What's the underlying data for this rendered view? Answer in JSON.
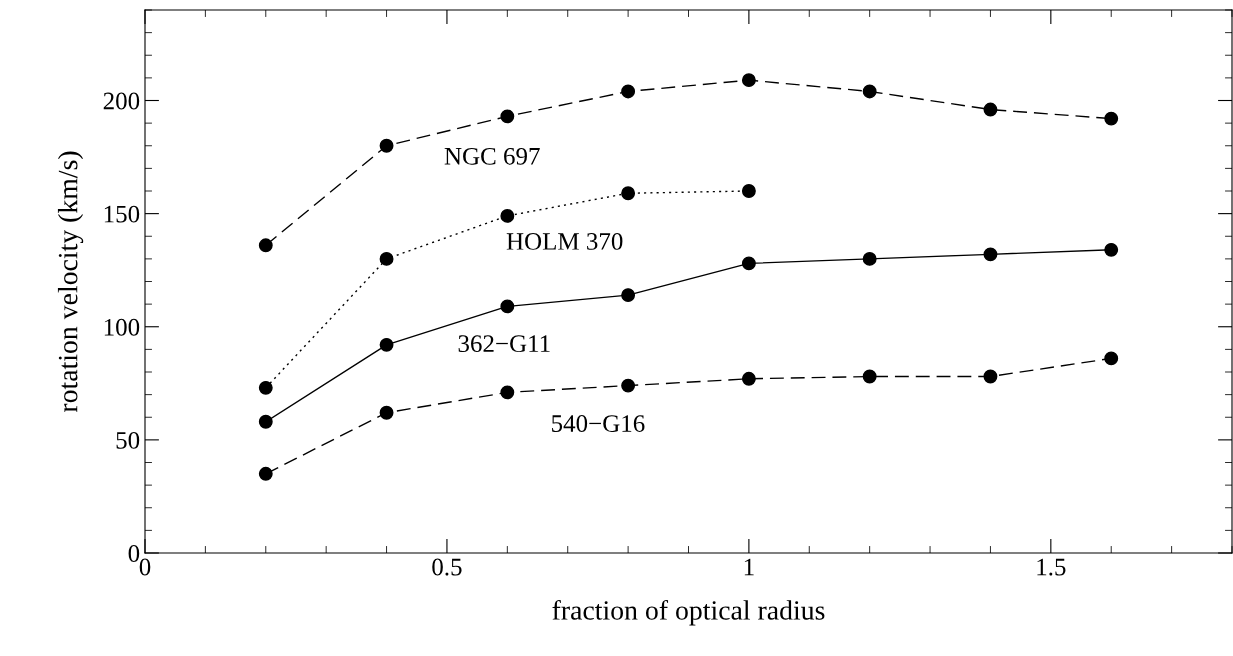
{
  "chart_data": {
    "type": "line",
    "xlabel": "fraction of optical radius",
    "ylabel": "rotation velocity (km/s)",
    "xlim": [
      0,
      1.8
    ],
    "xticks": [
      0,
      0.5,
      1,
      1.5
    ],
    "ylim": [
      0,
      240
    ],
    "yticks": [
      0,
      50,
      100,
      150,
      200
    ],
    "grid": false,
    "marker": "circle",
    "series": [
      {
        "name": "NGC 697",
        "color": "#000000",
        "line_style": "dashed",
        "x": [
          0.2,
          0.4,
          0.6,
          0.8,
          1.0,
          1.2,
          1.4,
          1.6
        ],
        "values": [
          136,
          180,
          193,
          204,
          209,
          204,
          196,
          192
        ]
      },
      {
        "name": "HOLM 370",
        "color": "#000000",
        "line_style": "dotted",
        "x": [
          0.2,
          0.4,
          0.6,
          0.8,
          1.0
        ],
        "values": [
          73,
          130,
          149,
          159,
          160
        ]
      },
      {
        "name": "362−G11",
        "color": "#000000",
        "line_style": "solid",
        "x": [
          0.2,
          0.4,
          0.6,
          0.8,
          1.0,
          1.2,
          1.4,
          1.6
        ],
        "values": [
          58,
          92,
          109,
          114,
          128,
          130,
          132,
          134
        ]
      },
      {
        "name": "540−G16",
        "color": "#000000",
        "line_style": "dashed",
        "x": [
          0.2,
          0.4,
          0.6,
          0.8,
          1.0,
          1.2,
          1.4,
          1.6
        ],
        "values": [
          35,
          62,
          71,
          74,
          77,
          78,
          78,
          86
        ]
      }
    ]
  }
}
